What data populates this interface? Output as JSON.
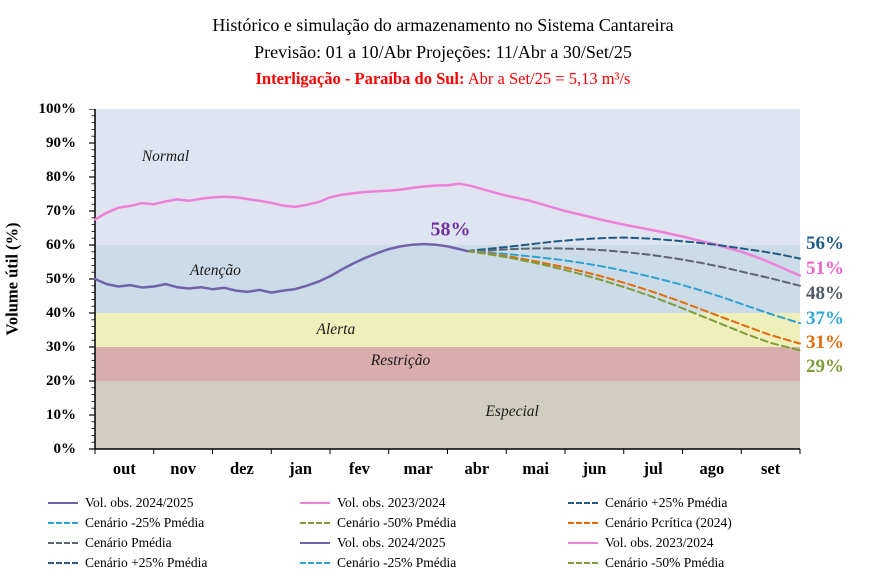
{
  "header": {
    "title": "Histórico e simulação do armazenamento no Sistema Cantareira",
    "subtitle": "Previsão: 01 a 10/Abr Projeções: 11/Abr a 30/Set/25",
    "interconnection_label": "Interligação - Paraíba do Sul:",
    "interconnection_value": " Abr a Set/25 = 5,13 m³/s"
  },
  "chart_data": {
    "type": "line",
    "title": "Histórico e simulação do armazenamento no Sistema Cantareira",
    "subtitle": "Previsão: 01 a 10/Abr Projeções: 11/Abr a 30/Set/25",
    "xlabel": "",
    "ylabel": "Volume útil (%)",
    "ylim": [
      0,
      100
    ],
    "grid": false,
    "legend_position": "bottom",
    "x_categories": [
      "out",
      "nov",
      "dez",
      "jan",
      "fev",
      "mar",
      "abr",
      "mai",
      "jun",
      "jul",
      "ago",
      "set"
    ],
    "y_ticks": [
      {
        "value": 0,
        "label": "0%"
      },
      {
        "value": 10,
        "label": "10%"
      },
      {
        "value": 20,
        "label": "20%"
      },
      {
        "value": 30,
        "label": "30%"
      },
      {
        "value": 40,
        "label": "40%"
      },
      {
        "value": 50,
        "label": "50%"
      },
      {
        "value": 60,
        "label": "60%"
      },
      {
        "value": 70,
        "label": "70%"
      },
      {
        "value": 80,
        "label": "80%"
      },
      {
        "value": 90,
        "label": "90%"
      },
      {
        "value": 100,
        "label": "100%"
      }
    ],
    "zones": [
      {
        "id": "normal",
        "name": "Normal",
        "from": 60,
        "to": 100,
        "color": "#dee5f0",
        "label_x": 1.2,
        "label_y": 86
      },
      {
        "id": "atencao",
        "name": "Atenção",
        "from": 40,
        "to": 60,
        "color": "#cbdbe7",
        "label_x": 2.05,
        "label_y": 52.5
      },
      {
        "id": "alerta",
        "name": "Alerta",
        "from": 30,
        "to": 40,
        "color": "#eeefba",
        "label_x": 4.1,
        "label_y": 35
      },
      {
        "id": "restricao",
        "name": "Restrição",
        "from": 20,
        "to": 30,
        "color": "#d9acae",
        "label_x": 5.2,
        "label_y": 25.8
      },
      {
        "id": "especial",
        "name": "Especial",
        "from": 0,
        "to": 20,
        "color": "#d1cdc0",
        "label_x": 7.1,
        "label_y": 11
      }
    ],
    "series": [
      {
        "id": "vol-obs-2023-2024",
        "name": "Vol. obs. 2023/2024",
        "color": "#EF7FD9",
        "width": 2.5,
        "dashed": false,
        "points": [
          [
            0,
            67.5
          ],
          [
            0.2,
            69.5
          ],
          [
            0.4,
            71
          ],
          [
            0.6,
            71.5
          ],
          [
            0.8,
            72.3
          ],
          [
            1,
            72
          ],
          [
            1.2,
            72.8
          ],
          [
            1.4,
            73.4
          ],
          [
            1.6,
            73
          ],
          [
            1.8,
            73.6
          ],
          [
            2,
            74
          ],
          [
            2.2,
            74.2
          ],
          [
            2.4,
            74
          ],
          [
            2.6,
            73.5
          ],
          [
            2.8,
            73
          ],
          [
            3,
            72.4
          ],
          [
            3.2,
            71.6
          ],
          [
            3.4,
            71.2
          ],
          [
            3.6,
            71.8
          ],
          [
            3.8,
            72.6
          ],
          [
            4,
            74
          ],
          [
            4.2,
            74.8
          ],
          [
            4.4,
            75.2
          ],
          [
            4.6,
            75.6
          ],
          [
            4.8,
            75.8
          ],
          [
            5,
            76
          ],
          [
            5.2,
            76.3
          ],
          [
            5.4,
            76.8
          ],
          [
            5.6,
            77.2
          ],
          [
            5.8,
            77.5
          ],
          [
            6,
            77.6
          ],
          [
            6.2,
            78
          ],
          [
            6.4,
            77.4
          ],
          [
            6.6,
            76.4
          ],
          [
            6.8,
            75.4
          ],
          [
            7,
            74.5
          ],
          [
            7.2,
            73.8
          ],
          [
            7.4,
            73
          ],
          [
            7.6,
            72
          ],
          [
            7.8,
            71
          ],
          [
            8,
            70
          ],
          [
            8.3,
            68.8
          ],
          [
            8.6,
            67.5
          ],
          [
            9,
            66
          ],
          [
            9.3,
            65
          ],
          [
            9.6,
            64
          ],
          [
            10,
            62.5
          ],
          [
            10.3,
            61.2
          ],
          [
            10.6,
            60
          ],
          [
            11,
            58
          ],
          [
            11.3,
            56.2
          ],
          [
            11.6,
            54
          ],
          [
            12,
            51
          ]
        ]
      },
      {
        "id": "cenario-mais25-pmedia",
        "name": "Cenário +25% Pmédia",
        "color": "#1F5B86",
        "width": 2,
        "dashed": true,
        "points": [
          [
            6.33,
            58.2
          ],
          [
            6.6,
            58.7
          ],
          [
            7,
            59.4
          ],
          [
            7.4,
            60.2
          ],
          [
            7.8,
            61
          ],
          [
            8.2,
            61.6
          ],
          [
            8.6,
            62
          ],
          [
            9,
            62.2
          ],
          [
            9.4,
            61.9
          ],
          [
            9.8,
            61.4
          ],
          [
            10.2,
            60.8
          ],
          [
            10.6,
            60
          ],
          [
            11,
            59
          ],
          [
            11.4,
            58
          ],
          [
            11.7,
            57.1
          ],
          [
            12,
            56
          ]
        ]
      },
      {
        "id": "cenario-pmedia",
        "name": "Cenário Pmédia",
        "color": "#5C6570",
        "width": 2,
        "dashed": true,
        "points": [
          [
            6.33,
            58.2
          ],
          [
            6.7,
            58.4
          ],
          [
            7.1,
            58.8
          ],
          [
            7.5,
            59
          ],
          [
            7.9,
            59
          ],
          [
            8.3,
            58.8
          ],
          [
            8.7,
            58.4
          ],
          [
            9.1,
            57.8
          ],
          [
            9.5,
            57
          ],
          [
            9.9,
            56
          ],
          [
            10.3,
            54.8
          ],
          [
            10.7,
            53.4
          ],
          [
            11.1,
            51.8
          ],
          [
            11.5,
            50.2
          ],
          [
            12,
            48
          ]
        ]
      },
      {
        "id": "cenario-menos25-pmedia",
        "name": "Cenário -25% Pmédia",
        "color": "#2EA3D2",
        "width": 2,
        "dashed": true,
        "points": [
          [
            6.33,
            58.2
          ],
          [
            6.7,
            57.8
          ],
          [
            7.1,
            57.2
          ],
          [
            7.5,
            56.5
          ],
          [
            7.9,
            55.7
          ],
          [
            8.3,
            54.7
          ],
          [
            8.7,
            53.5
          ],
          [
            9.1,
            52.1
          ],
          [
            9.5,
            50.5
          ],
          [
            9.9,
            48.7
          ],
          [
            10.3,
            46.7
          ],
          [
            10.7,
            44.5
          ],
          [
            11.1,
            42.1
          ],
          [
            11.5,
            39.7
          ],
          [
            12,
            37
          ]
        ]
      },
      {
        "id": "cenario-pcritica-2024",
        "name": "Cenário Pcrítica (2024)",
        "color": "#E26B0A",
        "width": 2,
        "dashed": true,
        "points": [
          [
            6.33,
            58.2
          ],
          [
            6.7,
            57.5
          ],
          [
            7.1,
            56.5
          ],
          [
            7.5,
            55.2
          ],
          [
            7.9,
            53.8
          ],
          [
            8.3,
            52.2
          ],
          [
            8.7,
            50.4
          ],
          [
            9.1,
            48.4
          ],
          [
            9.5,
            46.2
          ],
          [
            9.9,
            43.8
          ],
          [
            10.3,
            41.2
          ],
          [
            10.7,
            38.6
          ],
          [
            11.1,
            36
          ],
          [
            11.5,
            33.5
          ],
          [
            12,
            31
          ]
        ]
      },
      {
        "id": "cenario-menos50-pmedia",
        "name": "Cenário -50% Pmédia",
        "color": "#7E9C3A",
        "width": 2,
        "dashed": true,
        "points": [
          [
            6.33,
            58.2
          ],
          [
            6.7,
            57.3
          ],
          [
            7.1,
            56.1
          ],
          [
            7.5,
            54.7
          ],
          [
            7.9,
            53.1
          ],
          [
            8.3,
            51.3
          ],
          [
            8.7,
            49.3
          ],
          [
            9.1,
            47.1
          ],
          [
            9.5,
            44.7
          ],
          [
            9.9,
            42.1
          ],
          [
            10.3,
            39.3
          ],
          [
            10.7,
            36.5
          ],
          [
            11.1,
            33.7
          ],
          [
            11.5,
            31.2
          ],
          [
            12,
            29
          ]
        ]
      },
      {
        "id": "vol-obs-2024-2025",
        "name": "Vol. obs. 2024/2025",
        "color": "#7262AC",
        "width": 2.5,
        "dashed": false,
        "points": [
          [
            0,
            50
          ],
          [
            0.2,
            48.5
          ],
          [
            0.4,
            47.8
          ],
          [
            0.6,
            48.2
          ],
          [
            0.8,
            47.5
          ],
          [
            1,
            47.8
          ],
          [
            1.2,
            48.5
          ],
          [
            1.4,
            47.6
          ],
          [
            1.6,
            47.2
          ],
          [
            1.8,
            47.6
          ],
          [
            2,
            47
          ],
          [
            2.2,
            47.4
          ],
          [
            2.4,
            46.6
          ],
          [
            2.6,
            46.2
          ],
          [
            2.8,
            46.8
          ],
          [
            3,
            46
          ],
          [
            3.2,
            46.6
          ],
          [
            3.4,
            47
          ],
          [
            3.6,
            48
          ],
          [
            3.8,
            49.2
          ],
          [
            4,
            50.8
          ],
          [
            4.2,
            52.8
          ],
          [
            4.4,
            54.6
          ],
          [
            4.6,
            56.2
          ],
          [
            4.8,
            57.6
          ],
          [
            5,
            58.8
          ],
          [
            5.2,
            59.6
          ],
          [
            5.4,
            60.1
          ],
          [
            5.6,
            60.3
          ],
          [
            5.8,
            60.1
          ],
          [
            6,
            59.6
          ],
          [
            6.2,
            58.8
          ],
          [
            6.33,
            58.2
          ]
        ]
      }
    ],
    "annotation": {
      "text": "58%",
      "x": 6.05,
      "y": 64.5,
      "color": "#7030A0"
    },
    "end_labels": [
      {
        "text": "56%",
        "value": 56,
        "color": "#1F5B86"
      },
      {
        "text": "51%",
        "value": 51,
        "color": "#F063CB"
      },
      {
        "text": "48%",
        "value": 48,
        "color": "#515A63"
      },
      {
        "text": "37%",
        "value": 37,
        "color": "#2FA9DA"
      },
      {
        "text": "31%",
        "value": 31,
        "color": "#E26B0A"
      },
      {
        "text": "29%",
        "value": 29,
        "color": "#7E9C3A"
      }
    ]
  },
  "legend": {
    "items": [
      {
        "label": "Vol. obs. 2024/2025",
        "color": "#7262AC",
        "dashed": false
      },
      {
        "label": "Vol. obs. 2023/2024",
        "color": "#EF7FD9",
        "dashed": false
      },
      {
        "label": "Cenário +25% Pmédia",
        "color": "#1F5B86",
        "dashed": true
      },
      {
        "label": "Cenário -25% Pmédia",
        "color": "#2EA3D2",
        "dashed": true
      },
      {
        "label": "Cenário -50% Pmédia",
        "color": "#7E9C3A",
        "dashed": true
      },
      {
        "label": "Cenário Pcrítica (2024)",
        "color": "#E26B0A",
        "dashed": true
      },
      {
        "label": "Cenário Pmédia",
        "color": "#5C6570",
        "dashed": true
      },
      {
        "label": "Vol. obs. 2024/2025",
        "color": "#7262AC",
        "dashed": false
      },
      {
        "label": "Vol. obs. 2023/2024",
        "color": "#EF7FD9",
        "dashed": false
      },
      {
        "label": "Cenário +25% Pmédia",
        "color": "#1F5B86",
        "dashed": true
      },
      {
        "label": "Cenário -25% Pmédia",
        "color": "#2EA3D2",
        "dashed": true
      },
      {
        "label": "Cenário -50% Pmédia",
        "color": "#7E9C3A",
        "dashed": true
      }
    ]
  }
}
